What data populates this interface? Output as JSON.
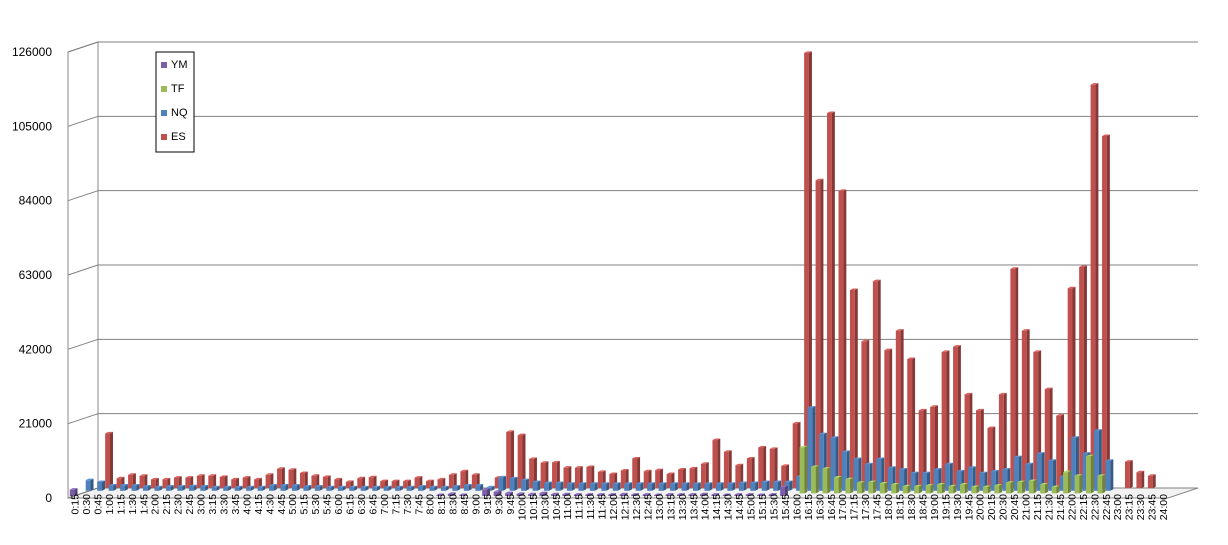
{
  "chart_data": {
    "type": "bar",
    "ylim": [
      0,
      126000
    ],
    "yticks": [
      0,
      21000,
      42000,
      63000,
      84000,
      105000,
      126000
    ],
    "ytick_labels": [
      "0",
      "21000",
      "42000",
      "63000",
      "84000",
      "105000",
      "126000"
    ],
    "grid": true,
    "legend": "top-left",
    "categories": [
      "0:15",
      "0:30",
      "0:45",
      "1:00",
      "1:15",
      "1:30",
      "1:45",
      "2:00",
      "2:15",
      "2:30",
      "2:45",
      "3:00",
      "3:15",
      "3:30",
      "3:45",
      "4:00",
      "4:15",
      "4:30",
      "4:45",
      "5:00",
      "5:15",
      "5:30",
      "5:45",
      "6:00",
      "6:15",
      "6:30",
      "6:45",
      "7:00",
      "7:15",
      "7:30",
      "7:45",
      "8:00",
      "8:15",
      "8:30",
      "8:45",
      "9:00",
      "9:15",
      "9:30",
      "9:45",
      "10:00",
      "10:15",
      "10:30",
      "10:45",
      "11:00",
      "11:15",
      "11:30",
      "11:45",
      "12:00",
      "12:15",
      "12:30",
      "12:45",
      "13:00",
      "13:15",
      "13:30",
      "13:45",
      "14:00",
      "14:15",
      "14:30",
      "14:45",
      "15:00",
      "15:15",
      "15:30",
      "15:45",
      "16:00",
      "16:15",
      "16:30",
      "16:45",
      "17:00",
      "17:15",
      "17:30",
      "17:45",
      "18:00",
      "18:15",
      "18:30",
      "18:45",
      "19:00",
      "19:15",
      "19:30",
      "19:45",
      "20:00",
      "20:15",
      "20:30",
      "20:45",
      "21:00",
      "21:15",
      "21:30",
      "21:45",
      "22:00",
      "22:15",
      "22:30",
      "22:45",
      "23:00",
      "23:15",
      "23:30",
      "23:45",
      "24:00"
    ],
    "series": [
      {
        "name": "YM",
        "color": "#7a5fa8",
        "values": [
          1800,
          0,
          0,
          0,
          0,
          0,
          0,
          0,
          0,
          0,
          0,
          0,
          0,
          0,
          0,
          0,
          0,
          0,
          0,
          0,
          0,
          0,
          0,
          0,
          0,
          0,
          0,
          0,
          0,
          0,
          0,
          0,
          300,
          600,
          300,
          0,
          1800,
          1200,
          800,
          600,
          500,
          800,
          500,
          500,
          400,
          400,
          400,
          400,
          500,
          400,
          400,
          300,
          400,
          400,
          400,
          500,
          400,
          300,
          400,
          400,
          300,
          400,
          2500,
          0,
          0,
          0,
          0,
          0,
          0,
          0,
          0,
          0,
          0,
          0,
          0,
          0,
          0,
          0,
          0,
          0,
          0,
          0,
          0,
          0,
          0,
          0,
          0,
          0,
          0,
          0,
          0,
          0,
          0,
          0,
          0,
          0
        ]
      },
      {
        "name": "TF",
        "color": "#9bbb59",
        "values": [
          0,
          0,
          0,
          0,
          0,
          0,
          0,
          0,
          0,
          0,
          0,
          0,
          0,
          0,
          0,
          0,
          0,
          0,
          0,
          0,
          0,
          0,
          0,
          0,
          0,
          0,
          0,
          0,
          0,
          0,
          0,
          0,
          0,
          0,
          0,
          0,
          0,
          0,
          0,
          0,
          0,
          0,
          0,
          0,
          0,
          0,
          0,
          0,
          0,
          0,
          0,
          0,
          0,
          0,
          0,
          0,
          0,
          0,
          0,
          0,
          0,
          0,
          0,
          13000,
          7500,
          7000,
          4500,
          4000,
          3000,
          3200,
          2800,
          2500,
          2000,
          2000,
          2200,
          2500,
          2000,
          2500,
          1800,
          1800,
          2200,
          3000,
          3200,
          3500,
          2500,
          1800,
          6000,
          5000,
          10500,
          5000,
          0,
          0,
          0,
          0,
          0,
          0
        ]
      },
      {
        "name": "NQ",
        "color": "#4f81bd",
        "values": [
          3000,
          2500,
          1500,
          1500,
          1500,
          1200,
          1000,
          1200,
          1200,
          1300,
          1200,
          1000,
          1000,
          1000,
          1000,
          1000,
          1500,
          1500,
          1500,
          1200,
          1200,
          1000,
          1000,
          1000,
          1000,
          1000,
          1000,
          1000,
          1000,
          1200,
          1000,
          1000,
          1200,
          1500,
          1500,
          1000,
          3800,
          3500,
          3000,
          2500,
          2200,
          2200,
          2000,
          2000,
          2000,
          2000,
          2000,
          2000,
          2000,
          2000,
          2000,
          2000,
          2000,
          2000,
          2000,
          2000,
          2000,
          2200,
          2200,
          2500,
          2500,
          2500,
          4000,
          23500,
          16000,
          15000,
          11000,
          9000,
          7500,
          9000,
          6500,
          6000,
          5000,
          5000,
          6000,
          7500,
          5500,
          6500,
          5000,
          5500,
          6000,
          9500,
          7500,
          10500,
          8500,
          4000,
          15000,
          10500,
          17000,
          8500,
          0,
          0,
          0,
          0,
          0,
          0
        ]
      },
      {
        "name": "ES",
        "color": "#c0504d",
        "values": [
          0,
          15500,
          2800,
          3800,
          3500,
          2500,
          2500,
          3000,
          3000,
          3500,
          3500,
          3200,
          2500,
          3000,
          2500,
          3800,
          5500,
          5200,
          4300,
          3500,
          3200,
          2500,
          1800,
          2800,
          3100,
          2000,
          2000,
          2000,
          3000,
          2000,
          2500,
          3800,
          4800,
          3800,
          0,
          3000,
          15900,
          15000,
          8300,
          7200,
          7300,
          5800,
          5800,
          6000,
          4600,
          4000,
          5000,
          8400,
          4800,
          5100,
          4000,
          5300,
          5600,
          6900,
          13600,
          10300,
          6500,
          8400,
          11500,
          11100,
          6300,
          18300,
          123000,
          87000,
          106000,
          84000,
          56000,
          41500,
          58500,
          39000,
          44500,
          36500,
          22000,
          23000,
          38500,
          40000,
          26500,
          22000,
          17000,
          26500,
          62000,
          44500,
          38500,
          28000,
          20500,
          56500,
          62500,
          114000,
          99500,
          0,
          7500,
          4500,
          3500,
          0,
          0,
          0
        ]
      }
    ]
  }
}
